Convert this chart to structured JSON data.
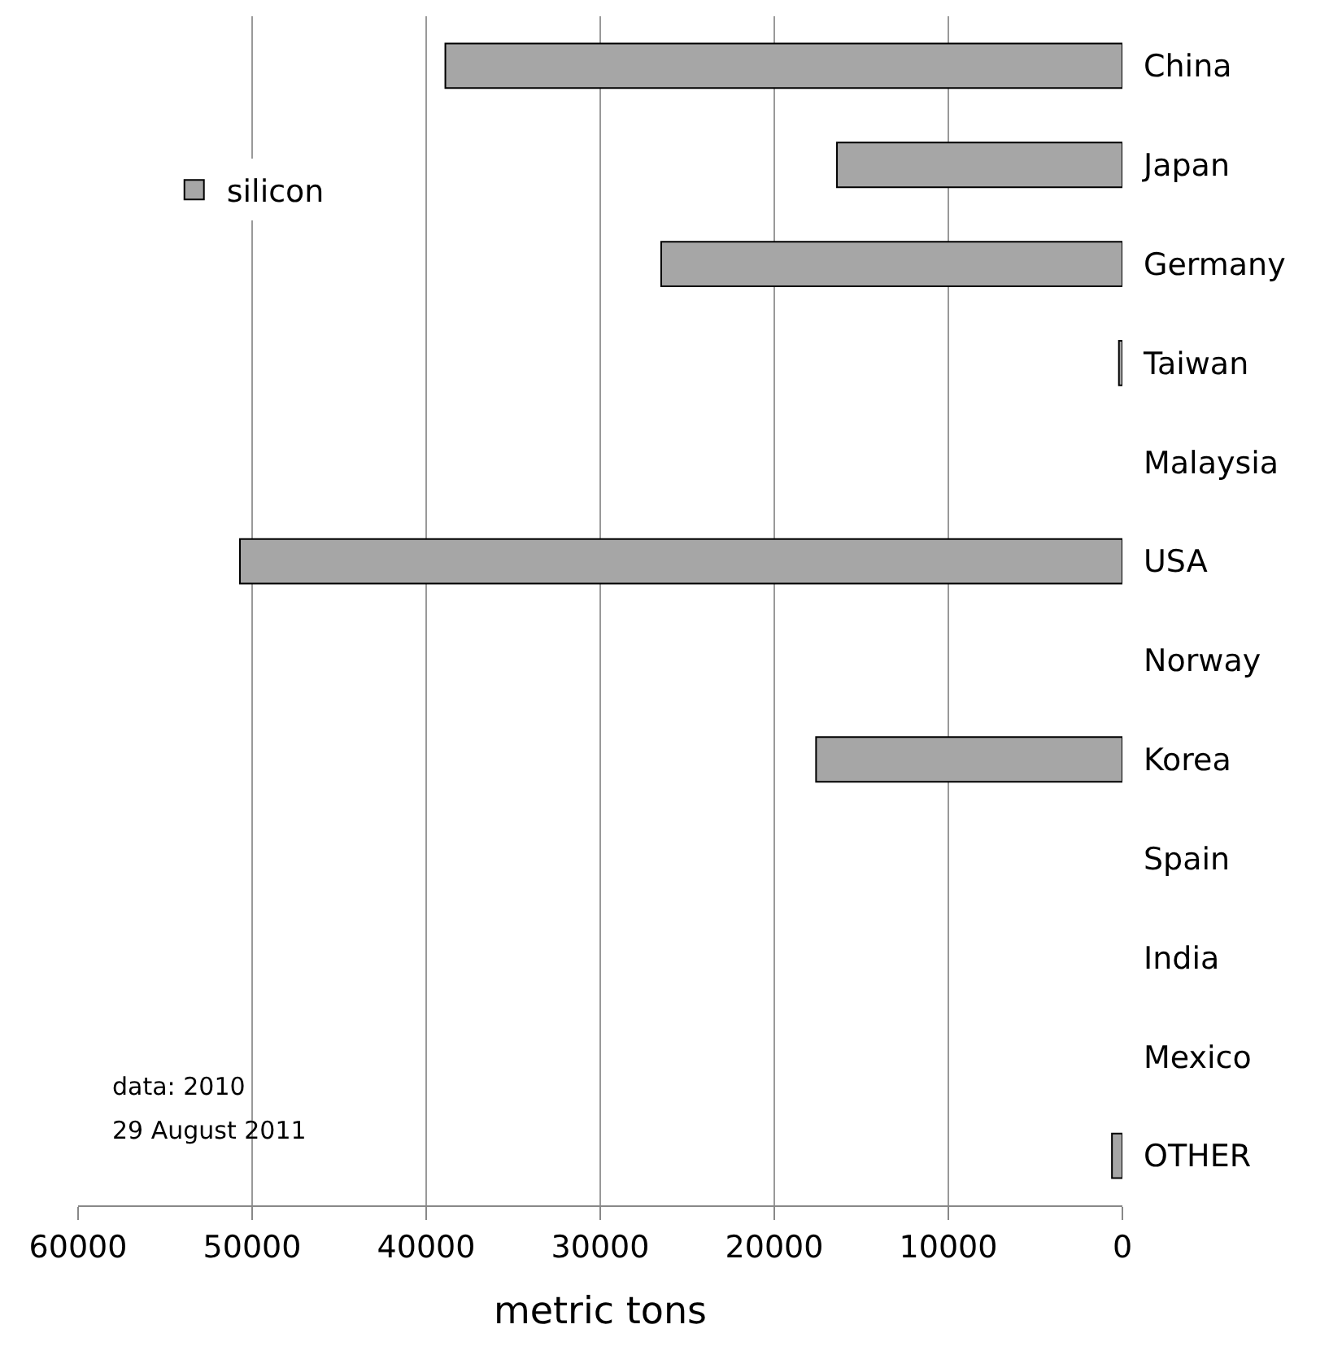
{
  "chart_data": {
    "type": "bar",
    "orientation": "horizontal",
    "categories": [
      "China",
      "Japan",
      "Germany",
      "Taiwan",
      "Malaysia",
      "USA",
      "Norway",
      "Korea",
      "Spain",
      "India",
      "Mexico",
      "OTHER"
    ],
    "series": [
      {
        "name": "silicon",
        "color": "#a6a6a6",
        "values": [
          38900,
          16400,
          26500,
          200,
          null,
          50700,
          null,
          17600,
          null,
          null,
          null,
          600
        ]
      }
    ],
    "xlim": [
      60000,
      0
    ],
    "xticks": [
      60000,
      50000,
      40000,
      30000,
      20000,
      10000,
      0
    ],
    "xlabel": "metric tons",
    "grid": "x",
    "legend": "top left",
    "annotations": [
      "data: 2010",
      "29 August 2011"
    ]
  }
}
